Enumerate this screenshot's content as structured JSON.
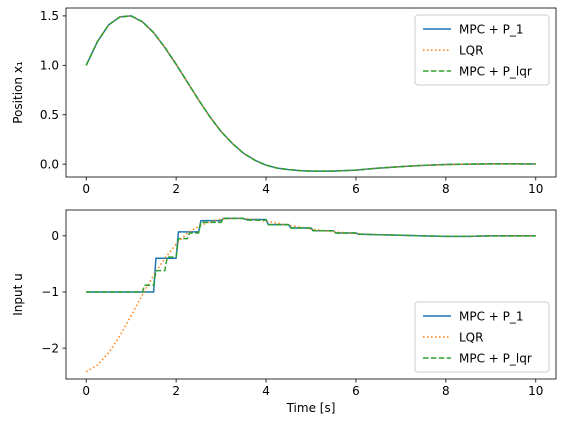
{
  "colors": {
    "mpc_p1": "#1f77b4",
    "lqr": "#ff7f0e",
    "mpc_plqr": "#2ca02c",
    "axes": "#000000",
    "background": "#ffffff"
  },
  "chart_data": [
    {
      "type": "line",
      "title": "",
      "xlabel": "",
      "ylabel": "Position x₁",
      "xlim": [
        -0.45,
        10.45
      ],
      "ylim": [
        -0.13,
        1.58
      ],
      "xticks": [
        0,
        2,
        4,
        6,
        8,
        10
      ],
      "xtick_labels": [
        "0",
        "2",
        "4",
        "6",
        "8",
        "10"
      ],
      "yticks": [
        0.0,
        0.5,
        1.0,
        1.5
      ],
      "ytick_labels": [
        "0.0",
        "0.5",
        "1.0",
        "1.5"
      ],
      "grid": false,
      "legend_position": "top-right",
      "series": [
        {
          "name": "MPC + P_1",
          "style": "solid",
          "x": [
            0,
            0.25,
            0.5,
            0.75,
            1.0,
            1.25,
            1.5,
            1.75,
            2.0,
            2.25,
            2.5,
            2.75,
            3.0,
            3.25,
            3.5,
            3.75,
            4.0,
            4.25,
            4.5,
            4.75,
            5.0,
            5.5,
            6.0,
            6.5,
            7.0,
            7.5,
            8.0,
            8.5,
            9.0,
            9.5,
            10.0
          ],
          "y": [
            1.0,
            1.24,
            1.41,
            1.49,
            1.5,
            1.44,
            1.33,
            1.18,
            1.01,
            0.83,
            0.65,
            0.48,
            0.33,
            0.21,
            0.11,
            0.04,
            -0.01,
            -0.04,
            -0.055,
            -0.065,
            -0.07,
            -0.07,
            -0.06,
            -0.04,
            -0.025,
            -0.012,
            -0.004,
            0.0,
            0.003,
            0.003,
            0.002
          ]
        },
        {
          "name": "LQR",
          "style": "dotted",
          "x": [
            0,
            0.25,
            0.5,
            0.75,
            1.0,
            1.25,
            1.5,
            1.75,
            2.0,
            2.25,
            2.5,
            2.75,
            3.0,
            3.25,
            3.5,
            3.75,
            4.0,
            4.25,
            4.5,
            4.75,
            5.0,
            5.5,
            6.0,
            6.5,
            7.0,
            7.5,
            8.0,
            8.5,
            9.0,
            9.5,
            10.0
          ],
          "y": [
            1.0,
            1.24,
            1.41,
            1.49,
            1.5,
            1.44,
            1.33,
            1.18,
            1.01,
            0.83,
            0.65,
            0.48,
            0.33,
            0.21,
            0.11,
            0.04,
            -0.01,
            -0.04,
            -0.055,
            -0.065,
            -0.07,
            -0.07,
            -0.06,
            -0.04,
            -0.025,
            -0.012,
            -0.004,
            0.0,
            0.003,
            0.003,
            0.002
          ]
        },
        {
          "name": "MPC + P_lqr",
          "style": "dashed",
          "x": [
            0,
            0.25,
            0.5,
            0.75,
            1.0,
            1.25,
            1.5,
            1.75,
            2.0,
            2.25,
            2.5,
            2.75,
            3.0,
            3.25,
            3.5,
            3.75,
            4.0,
            4.25,
            4.5,
            4.75,
            5.0,
            5.5,
            6.0,
            6.5,
            7.0,
            7.5,
            8.0,
            8.5,
            9.0,
            9.5,
            10.0
          ],
          "y": [
            1.0,
            1.24,
            1.41,
            1.49,
            1.5,
            1.44,
            1.33,
            1.18,
            1.01,
            0.83,
            0.65,
            0.48,
            0.33,
            0.21,
            0.11,
            0.04,
            -0.01,
            -0.04,
            -0.055,
            -0.065,
            -0.07,
            -0.07,
            -0.06,
            -0.04,
            -0.025,
            -0.012,
            -0.004,
            0.0,
            0.003,
            0.003,
            0.002
          ]
        }
      ]
    },
    {
      "type": "line",
      "title": "",
      "xlabel": "Time [s]",
      "ylabel": "Input u",
      "xlim": [
        -0.45,
        10.45
      ],
      "ylim": [
        -2.55,
        0.46
      ],
      "xticks": [
        0,
        2,
        4,
        6,
        8,
        10
      ],
      "xtick_labels": [
        "0",
        "2",
        "4",
        "6",
        "8",
        "10"
      ],
      "yticks": [
        -2,
        -1,
        0
      ],
      "ytick_labels": [
        "−2",
        "−1",
        "0"
      ],
      "grid": false,
      "legend_position": "bottom-right",
      "series": [
        {
          "name": "MPC + P_1",
          "style": "step",
          "x": [
            0,
            0.5,
            1.0,
            1.5,
            1.55,
            2.0,
            2.05,
            2.5,
            2.55,
            3.0,
            3.05,
            3.5,
            3.55,
            4.0,
            4.05,
            4.5,
            4.55,
            5.0,
            5.05,
            5.5,
            5.55,
            6.0,
            6.05,
            6.5,
            7.0,
            7.5,
            8.0,
            8.5,
            9.0,
            9.5,
            10.0
          ],
          "y": [
            -1.0,
            -1.0,
            -1.0,
            -1.0,
            -0.4,
            -0.4,
            0.07,
            0.07,
            0.27,
            0.27,
            0.31,
            0.31,
            0.29,
            0.29,
            0.2,
            0.2,
            0.14,
            0.14,
            0.09,
            0.09,
            0.05,
            0.05,
            0.03,
            0.02,
            0.01,
            0.0,
            -0.01,
            -0.01,
            0.0,
            0.0,
            0.0
          ]
        },
        {
          "name": "LQR",
          "style": "dotted",
          "x": [
            0,
            0.25,
            0.5,
            0.75,
            1.0,
            1.25,
            1.5,
            1.75,
            2.0,
            2.25,
            2.5,
            2.75,
            3.0,
            3.25,
            3.5,
            4.0,
            4.5,
            5.0,
            5.5,
            6.0,
            6.5,
            7.0,
            7.5,
            8.0,
            8.5,
            9.0,
            9.5,
            10.0
          ],
          "y": [
            -2.42,
            -2.3,
            -2.08,
            -1.78,
            -1.42,
            -1.05,
            -0.7,
            -0.4,
            -0.15,
            0.05,
            0.17,
            0.25,
            0.3,
            0.31,
            0.31,
            0.26,
            0.19,
            0.12,
            0.07,
            0.04,
            0.02,
            0.01,
            0.0,
            -0.01,
            -0.01,
            0.0,
            0.0,
            0.0
          ]
        },
        {
          "name": "MPC + P_lqr",
          "style": "dashed",
          "x": [
            0,
            0.5,
            1.0,
            1.25,
            1.3,
            1.5,
            1.55,
            1.75,
            1.8,
            2.0,
            2.05,
            2.25,
            2.3,
            2.5,
            2.55,
            3.0,
            3.05,
            3.5,
            3.55,
            4.0,
            4.05,
            4.5,
            4.55,
            5.0,
            5.05,
            5.5,
            5.55,
            6.0,
            6.05,
            6.5,
            7.0,
            7.5,
            8.0,
            8.5,
            9.0,
            9.5,
            10.0
          ],
          "y": [
            -1.0,
            -1.0,
            -1.0,
            -1.0,
            -0.88,
            -0.88,
            -0.62,
            -0.62,
            -0.38,
            -0.38,
            -0.05,
            -0.05,
            0.05,
            0.05,
            0.24,
            0.24,
            0.31,
            0.31,
            0.28,
            0.28,
            0.2,
            0.2,
            0.14,
            0.14,
            0.09,
            0.09,
            0.05,
            0.05,
            0.03,
            0.02,
            0.01,
            0.0,
            -0.01,
            -0.01,
            0.0,
            0.0,
            0.0
          ]
        }
      ]
    }
  ]
}
